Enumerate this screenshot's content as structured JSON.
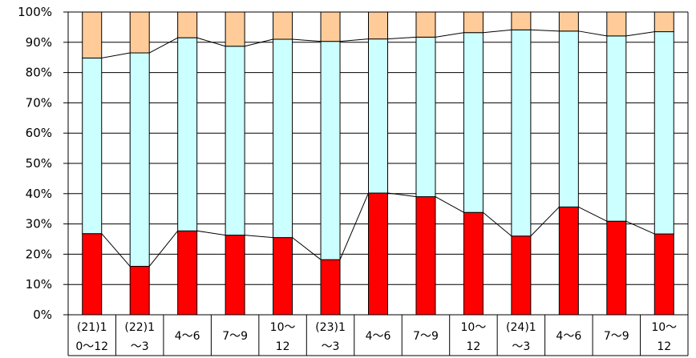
{
  "chart_data": {
    "type": "bar",
    "stacked": true,
    "percent": true,
    "categories": [
      [
        "(21)1",
        "0〜12"
      ],
      [
        "(22)1",
        "〜3"
      ],
      [
        "4〜6"
      ],
      [
        "7〜9"
      ],
      [
        "10〜",
        "12"
      ],
      [
        "(23)1",
        "〜3"
      ],
      [
        "4〜6"
      ],
      [
        "7〜9"
      ],
      [
        "10〜",
        "12"
      ],
      [
        "(24)1",
        "〜3"
      ],
      [
        "4〜6"
      ],
      [
        "7〜9"
      ],
      [
        "10〜",
        "12"
      ]
    ],
    "series": [
      {
        "values": [
          26.8,
          16.0,
          27.7,
          26.3,
          25.5,
          18.2,
          40.2,
          39.0,
          33.8,
          26.0,
          35.6,
          30.9,
          26.7
        ],
        "color": "#ff0000"
      },
      {
        "values": [
          58.0,
          70.5,
          63.8,
          62.4,
          65.5,
          72.1,
          50.9,
          52.7,
          59.4,
          68.1,
          58.1,
          61.2,
          66.8
        ],
        "color": "#ccffff"
      },
      {
        "values": [
          15.2,
          13.5,
          8.5,
          11.3,
          9.0,
          9.7,
          8.9,
          8.3,
          6.8,
          5.9,
          6.3,
          7.9,
          6.5
        ],
        "color": "#ffcc99"
      }
    ],
    "y_ticks": [
      "0%",
      "10%",
      "20%",
      "30%",
      "40%",
      "50%",
      "60%",
      "70%",
      "80%",
      "90%",
      "100%"
    ],
    "ylim": [
      0,
      100
    ],
    "grid": true,
    "series_lines": true,
    "legend": "none"
  }
}
